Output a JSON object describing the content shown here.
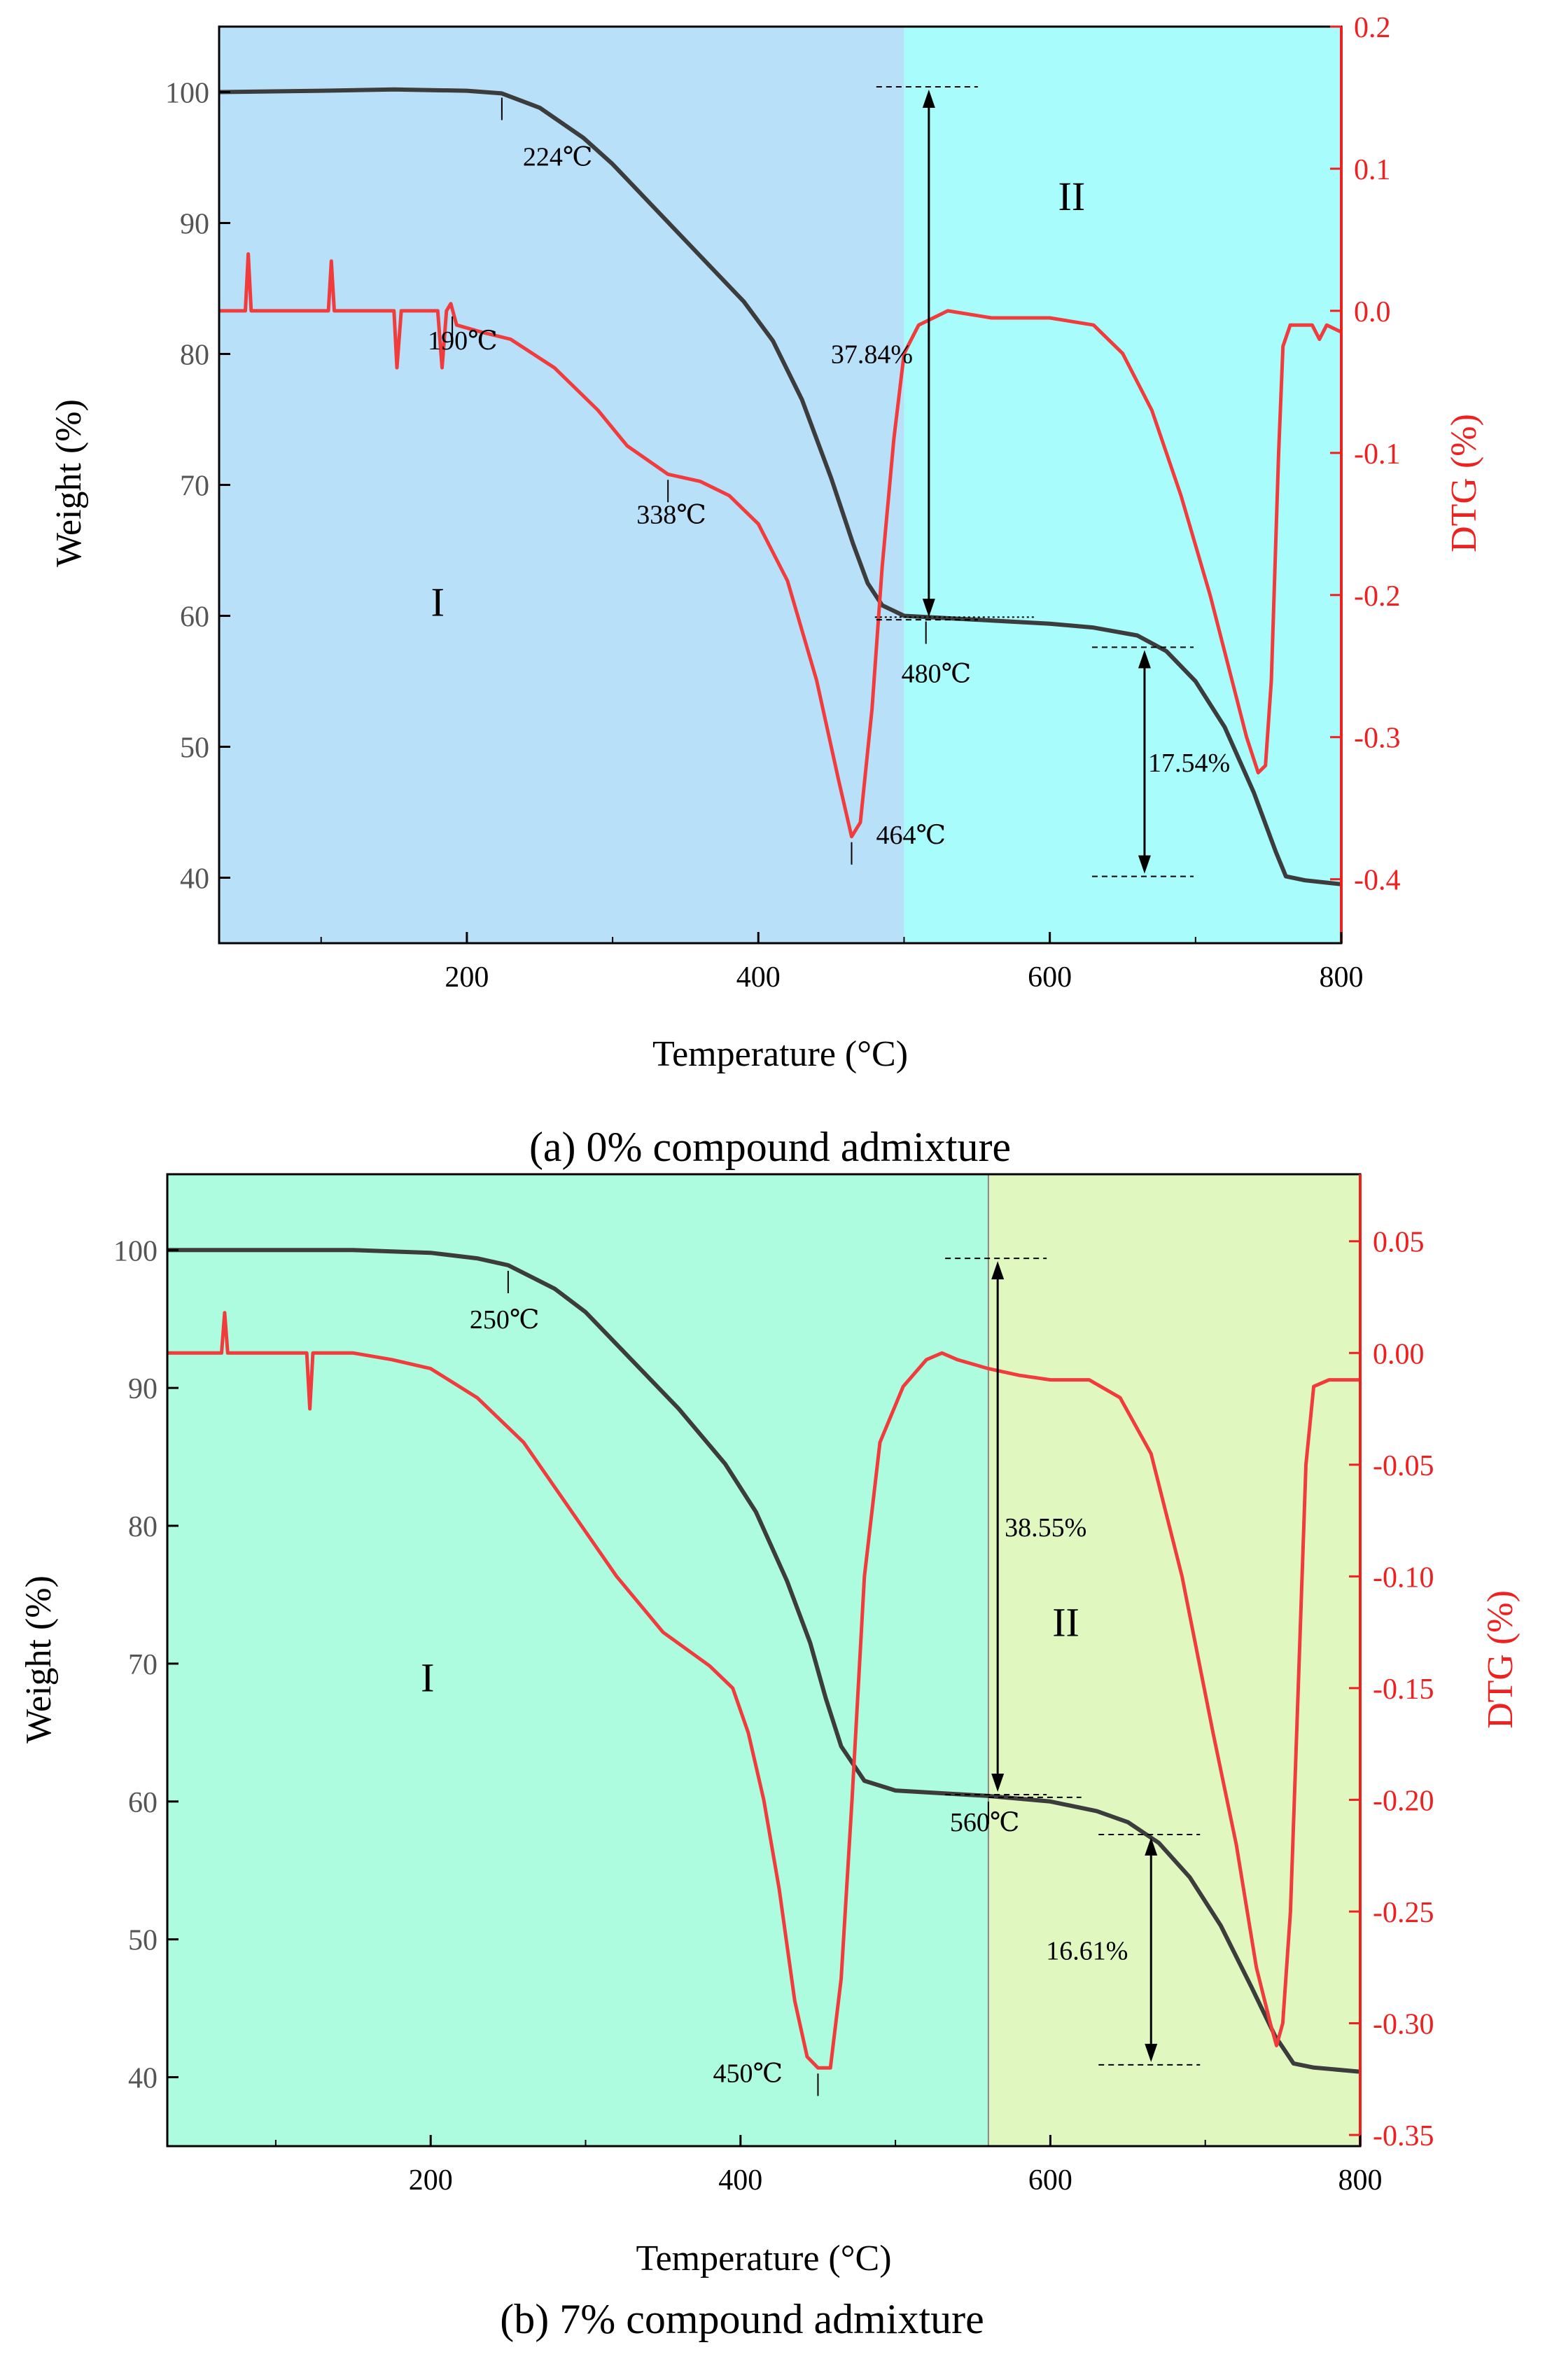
{
  "colors": {
    "weight_curve": "#3c3c3c",
    "dtg_curve": "#f03c3c",
    "dtg_axis": "#ee2020",
    "panel_a_region1": "#b8e0f8",
    "panel_a_region2": "#a8fcfc",
    "panel_b_region1": "#adfce0",
    "panel_b_region2": "#e0f8c0"
  },
  "chart_data": [
    {
      "type": "line",
      "caption": "(a) 0% compound admixture",
      "xlabel": "Temperature (°C)",
      "ylabel": "Weight (%)",
      "y2label": "DTG (%)",
      "xlim": [
        30,
        800
      ],
      "ylim": [
        35,
        105
      ],
      "y2lim": [
        -0.445,
        0.2
      ],
      "xticks": [
        {
          "v": 200,
          "t": "200"
        },
        {
          "v": 400,
          "t": "400"
        },
        {
          "v": 600,
          "t": "600"
        },
        {
          "v": 800,
          "t": "800"
        }
      ],
      "yticks": [
        {
          "v": 40,
          "t": "40"
        },
        {
          "v": 50,
          "t": "50"
        },
        {
          "v": 60,
          "t": "60"
        },
        {
          "v": 70,
          "t": "70"
        },
        {
          "v": 80,
          "t": "80"
        },
        {
          "v": 90,
          "t": "90"
        },
        {
          "v": 100,
          "t": "100"
        }
      ],
      "y2ticks": [
        {
          "v": 0.2,
          "t": "0.2"
        },
        {
          "v": 0.1,
          "t": "0.1"
        },
        {
          "v": 0.0,
          "t": "0.0"
        },
        {
          "v": -0.1,
          "t": "-0.1"
        },
        {
          "v": -0.2,
          "t": "-0.2"
        },
        {
          "v": -0.3,
          "t": "-0.3"
        },
        {
          "v": -0.4,
          "t": "-0.4"
        }
      ],
      "regions": [
        {
          "label": "I",
          "from": 30,
          "to": 500,
          "label_x": 180,
          "label_y": 60
        },
        {
          "label": "II",
          "from": 500,
          "to": 800,
          "label_x": 615,
          "label_y": 91
        }
      ],
      "series": [
        {
          "name": "Weight",
          "axis": "left",
          "points": [
            [
              30,
              100
            ],
            [
              100,
              100.1
            ],
            [
              150,
              100.2
            ],
            [
              200,
              100.1
            ],
            [
              224,
              99.9
            ],
            [
              250,
              98.8
            ],
            [
              280,
              96.5
            ],
            [
              300,
              94.5
            ],
            [
              330,
              91
            ],
            [
              360,
              87.5
            ],
            [
              390,
              84
            ],
            [
              410,
              81
            ],
            [
              430,
              76.5
            ],
            [
              450,
              70.5
            ],
            [
              465,
              65.5
            ],
            [
              475,
              62.5
            ],
            [
              485,
              60.8
            ],
            [
              500,
              60
            ],
            [
              550,
              59.7
            ],
            [
              600,
              59.4
            ],
            [
              630,
              59.1
            ],
            [
              660,
              58.5
            ],
            [
              680,
              57.3
            ],
            [
              700,
              55
            ],
            [
              720,
              51.5
            ],
            [
              740,
              46.5
            ],
            [
              755,
              42
            ],
            [
              762,
              40.1
            ],
            [
              775,
              39.8
            ],
            [
              800,
              39.5
            ]
          ]
        },
        {
          "name": "DTG",
          "axis": "right",
          "points": [
            [
              30,
              0
            ],
            [
              48,
              0
            ],
            [
              50,
              0.04
            ],
            [
              52,
              0
            ],
            [
              105,
              0
            ],
            [
              107,
              0.035
            ],
            [
              109,
              0
            ],
            [
              150,
              0
            ],
            [
              152,
              -0.04
            ],
            [
              155,
              0
            ],
            [
              180,
              0
            ],
            [
              183,
              -0.04
            ],
            [
              186,
              0
            ],
            [
              189,
              0.005
            ],
            [
              193,
              -0.01
            ],
            [
              210,
              -0.015
            ],
            [
              230,
              -0.02
            ],
            [
              260,
              -0.04
            ],
            [
              290,
              -0.07
            ],
            [
              310,
              -0.095
            ],
            [
              338,
              -0.115
            ],
            [
              360,
              -0.12
            ],
            [
              380,
              -0.13
            ],
            [
              400,
              -0.15
            ],
            [
              420,
              -0.19
            ],
            [
              440,
              -0.26
            ],
            [
              455,
              -0.33
            ],
            [
              464,
              -0.37
            ],
            [
              470,
              -0.36
            ],
            [
              478,
              -0.28
            ],
            [
              485,
              -0.18
            ],
            [
              493,
              -0.09
            ],
            [
              500,
              -0.03
            ],
            [
              510,
              -0.01
            ],
            [
              530,
              0.0
            ],
            [
              560,
              -0.005
            ],
            [
              600,
              -0.005
            ],
            [
              630,
              -0.01
            ],
            [
              650,
              -0.03
            ],
            [
              670,
              -0.07
            ],
            [
              690,
              -0.13
            ],
            [
              710,
              -0.2
            ],
            [
              725,
              -0.26
            ],
            [
              735,
              -0.3
            ],
            [
              743,
              -0.325
            ],
            [
              748,
              -0.32
            ],
            [
              752,
              -0.26
            ],
            [
              757,
              -0.1
            ],
            [
              760,
              -0.025
            ],
            [
              765,
              -0.01
            ],
            [
              780,
              -0.01
            ],
            [
              785,
              -0.02
            ],
            [
              790,
              -0.01
            ],
            [
              800,
              -0.015
            ]
          ]
        }
      ],
      "point_labels": [
        {
          "text": "224℃",
          "x": 224,
          "y": 100,
          "axis": "left"
        },
        {
          "text": "190℃",
          "x": 190,
          "y": 0,
          "axis": "right"
        },
        {
          "text": "338℃",
          "x": 338,
          "y": -0.115,
          "axis": "right"
        },
        {
          "text": "480℃",
          "x": 515,
          "y": 60,
          "axis": "left"
        },
        {
          "text": "464℃",
          "x": 464,
          "y": -0.37,
          "axis": "right"
        }
      ],
      "mass_loss": [
        {
          "label": "37.84%",
          "x": 517,
          "y_top": 100.4,
          "y_bottom": 59.7
        },
        {
          "label": "17.54%",
          "x": 665,
          "y_top": 57.6,
          "y_bottom": 40.1
        }
      ]
    },
    {
      "type": "line",
      "caption": "(b) 7% compound admixture",
      "xlabel": "Temperature (°C)",
      "ylabel": "Weight (%)",
      "y2label": "DTG (%)",
      "xlim": [
        30,
        800
      ],
      "ylim": [
        35,
        105.5
      ],
      "y2lim": [
        -0.355,
        0.08
      ],
      "xticks": [
        {
          "v": 200,
          "t": "200"
        },
        {
          "v": 400,
          "t": "400"
        },
        {
          "v": 600,
          "t": "600"
        },
        {
          "v": 800,
          "t": "800"
        }
      ],
      "yticks": [
        {
          "v": 40,
          "t": "40"
        },
        {
          "v": 50,
          "t": "50"
        },
        {
          "v": 60,
          "t": "60"
        },
        {
          "v": 70,
          "t": "70"
        },
        {
          "v": 80,
          "t": "80"
        },
        {
          "v": 90,
          "t": "90"
        },
        {
          "v": 100,
          "t": "100"
        }
      ],
      "y2ticks": [
        {
          "v": 0.05,
          "t": "0.05"
        },
        {
          "v": 0.0,
          "t": "0.00"
        },
        {
          "v": -0.05,
          "t": "-0.05"
        },
        {
          "v": -0.1,
          "t": "-0.10"
        },
        {
          "v": -0.15,
          "t": "-0.15"
        },
        {
          "v": -0.2,
          "t": "-0.20"
        },
        {
          "v": -0.25,
          "t": "-0.25"
        },
        {
          "v": -0.3,
          "t": "-0.30"
        },
        {
          "v": -0.35,
          "t": "-0.35"
        }
      ],
      "regions": [
        {
          "label": "I",
          "from": 30,
          "to": 560,
          "label_x": 198,
          "label_y": 68
        },
        {
          "label": "II",
          "from": 560,
          "to": 800,
          "label_x": 610,
          "label_y": 72
        }
      ],
      "series": [
        {
          "name": "Weight",
          "axis": "left",
          "points": [
            [
              30,
              100
            ],
            [
              100,
              100
            ],
            [
              150,
              100
            ],
            [
              200,
              99.8
            ],
            [
              230,
              99.4
            ],
            [
              250,
              98.9
            ],
            [
              280,
              97.2
            ],
            [
              300,
              95.5
            ],
            [
              330,
              92
            ],
            [
              360,
              88.5
            ],
            [
              390,
              84.5
            ],
            [
              410,
              81
            ],
            [
              430,
              76
            ],
            [
              445,
              71.5
            ],
            [
              455,
              67.5
            ],
            [
              465,
              64
            ],
            [
              480,
              61.5
            ],
            [
              500,
              60.8
            ],
            [
              560,
              60.4
            ],
            [
              600,
              60
            ],
            [
              630,
              59.3
            ],
            [
              650,
              58.5
            ],
            [
              670,
              57
            ],
            [
              690,
              54.5
            ],
            [
              710,
              51
            ],
            [
              730,
              46.5
            ],
            [
              745,
              43
            ],
            [
              757,
              41
            ],
            [
              770,
              40.7
            ],
            [
              800,
              40.4
            ]
          ]
        },
        {
          "name": "DTG",
          "axis": "right",
          "points": [
            [
              30,
              0
            ],
            [
              65,
              0
            ],
            [
              67,
              0.018
            ],
            [
              69,
              0
            ],
            [
              120,
              0
            ],
            [
              122,
              -0.025
            ],
            [
              124,
              0
            ],
            [
              150,
              0
            ],
            [
              175,
              -0.003
            ],
            [
              200,
              -0.007
            ],
            [
              230,
              -0.02
            ],
            [
              260,
              -0.04
            ],
            [
              290,
              -0.07
            ],
            [
              320,
              -0.1
            ],
            [
              350,
              -0.125
            ],
            [
              380,
              -0.14
            ],
            [
              395,
              -0.15
            ],
            [
              405,
              -0.17
            ],
            [
              415,
              -0.2
            ],
            [
              425,
              -0.24
            ],
            [
              435,
              -0.29
            ],
            [
              443,
              -0.315
            ],
            [
              450,
              -0.32
            ],
            [
              458,
              -0.32
            ],
            [
              465,
              -0.28
            ],
            [
              472,
              -0.2
            ],
            [
              480,
              -0.1
            ],
            [
              490,
              -0.04
            ],
            [
              505,
              -0.015
            ],
            [
              520,
              -0.003
            ],
            [
              530,
              0.0
            ],
            [
              540,
              -0.003
            ],
            [
              560,
              -0.007
            ],
            [
              580,
              -0.01
            ],
            [
              600,
              -0.012
            ],
            [
              625,
              -0.012
            ],
            [
              645,
              -0.02
            ],
            [
              665,
              -0.045
            ],
            [
              685,
              -0.1
            ],
            [
              705,
              -0.17
            ],
            [
              720,
              -0.22
            ],
            [
              733,
              -0.275
            ],
            [
              742,
              -0.3
            ],
            [
              746,
              -0.31
            ],
            [
              750,
              -0.3
            ],
            [
              755,
              -0.25
            ],
            [
              760,
              -0.15
            ],
            [
              765,
              -0.05
            ],
            [
              770,
              -0.015
            ],
            [
              780,
              -0.012
            ],
            [
              800,
              -0.012
            ]
          ]
        }
      ],
      "point_labels": [
        {
          "text": "250℃",
          "x": 250,
          "y": 98.9,
          "axis": "left"
        },
        {
          "text": "560℃",
          "x": 560,
          "y": 60.4,
          "axis": "left"
        },
        {
          "text": "450℃",
          "x": 450,
          "y": -0.32,
          "axis": "right"
        }
      ],
      "mass_loss": [
        {
          "label": "38.55%",
          "x": 566,
          "y_top": 99.4,
          "y_bottom": 60.5
        },
        {
          "label": "16.61%",
          "x": 665,
          "y_top": 57.6,
          "y_bottom": 40.9
        }
      ]
    }
  ]
}
